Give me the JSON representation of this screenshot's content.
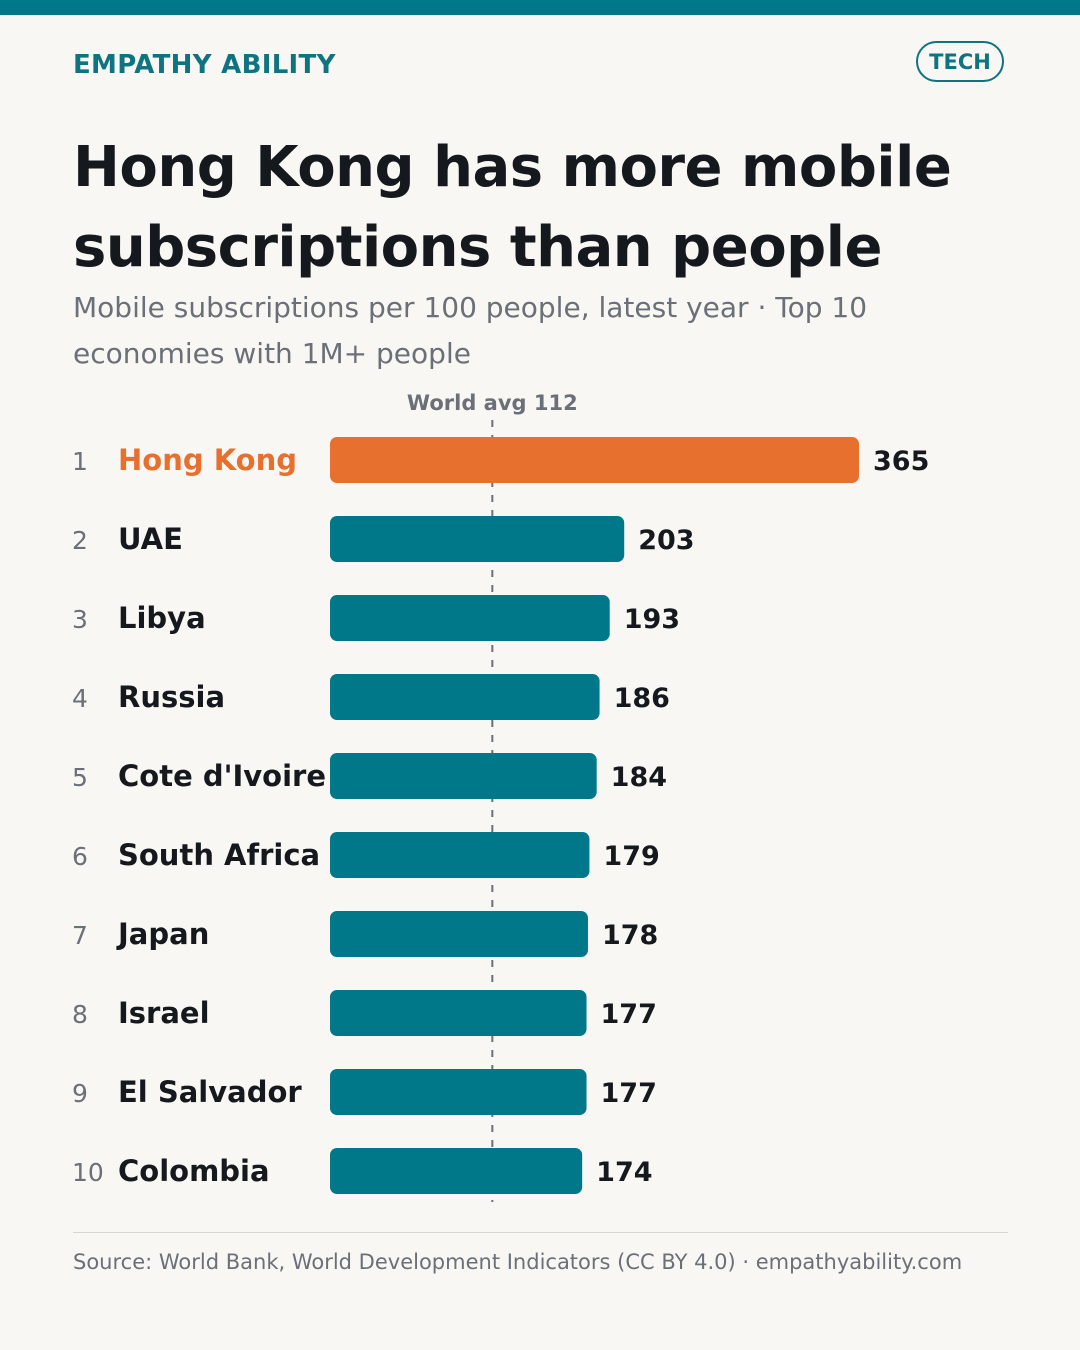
{
  "header": {
    "brand": "EMPATHY ABILITY",
    "tag": "TECH",
    "title": "Hong Kong has more mobile subscriptions than people",
    "subtitle": "Mobile subscriptions per 100 people, latest year · Top 10 economies with 1M+ people"
  },
  "footer": {
    "source": "Source: World Bank, World Development Indicators (CC BY 4.0) · empathyability.com"
  },
  "colors": {
    "accent": "#00788a",
    "highlight": "#e8702f",
    "text": "#15191e",
    "muted": "#6b7078"
  },
  "chart_data": {
    "type": "bar",
    "orientation": "horizontal",
    "ranks": [
      "1",
      "2",
      "3",
      "4",
      "5",
      "6",
      "7",
      "8",
      "9",
      "10"
    ],
    "categories": [
      "Hong Kong",
      "UAE",
      "Libya",
      "Russia",
      "Cote d'Ivoire",
      "South Africa",
      "Japan",
      "Israel",
      "El Salvador",
      "Colombia"
    ],
    "values": [
      365,
      203,
      193,
      186,
      184,
      179,
      178,
      177,
      177,
      174
    ],
    "highlight_index": 0,
    "reference_line": {
      "value": 112,
      "label": "World avg 112"
    },
    "xlim": [
      0,
      365
    ],
    "grid": false
  }
}
